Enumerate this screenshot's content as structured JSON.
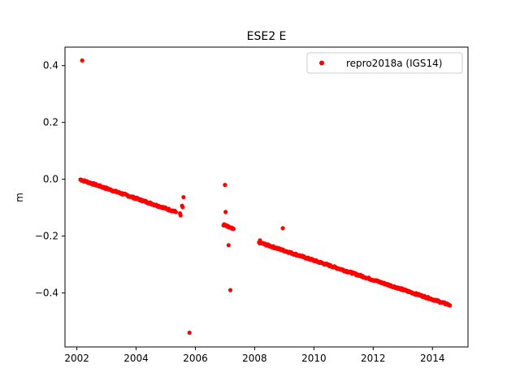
{
  "chart_data": {
    "type": "scatter",
    "title": "ESE2 E",
    "xlabel": "",
    "ylabel": "m",
    "xlim": [
      2001.6,
      2015.2
    ],
    "ylim": [
      -0.59,
      0.465
    ],
    "x_ticks": [
      2002,
      2004,
      2006,
      2008,
      2010,
      2012,
      2014
    ],
    "y_ticks": [
      0.4,
      0.2,
      0.0,
      -0.2,
      -0.4
    ],
    "x_tick_labels": [
      "2002",
      "2004",
      "2006",
      "2008",
      "2010",
      "2012",
      "2014"
    ],
    "y_tick_labels": [
      "0.4",
      "0.2",
      "0.0",
      "−0.2",
      "−0.4"
    ],
    "grid": false,
    "legend_position": "top-right",
    "series": [
      {
        "name": "repro2018a (IGS14)",
        "color": "#ff0000",
        "marker": "circle",
        "segments": [
          {
            "x_start": 2002.12,
            "x_end": 2005.35,
            "y_start": -0.001,
            "y_end": -0.115,
            "step": 0.02
          },
          {
            "x_start": 2006.95,
            "x_end": 2007.3,
            "y_start": -0.16,
            "y_end": -0.177,
            "step": 0.02
          },
          {
            "x_start": 2008.15,
            "x_end": 2014.6,
            "y_start": -0.222,
            "y_end": -0.443,
            "step": 0.02
          }
        ],
        "points": [
          {
            "x": 2002.18,
            "y": 0.418
          },
          {
            "x": 2005.48,
            "y": -0.12
          },
          {
            "x": 2005.5,
            "y": -0.127
          },
          {
            "x": 2005.55,
            "y": -0.093
          },
          {
            "x": 2005.57,
            "y": -0.098
          },
          {
            "x": 2005.6,
            "y": -0.063
          },
          {
            "x": 2005.8,
            "y": -0.54
          },
          {
            "x": 2007.0,
            "y": -0.02
          },
          {
            "x": 2007.02,
            "y": -0.115
          },
          {
            "x": 2007.12,
            "y": -0.232
          },
          {
            "x": 2007.18,
            "y": -0.39
          },
          {
            "x": 2008.18,
            "y": -0.215
          },
          {
            "x": 2008.95,
            "y": -0.172
          }
        ]
      }
    ]
  }
}
